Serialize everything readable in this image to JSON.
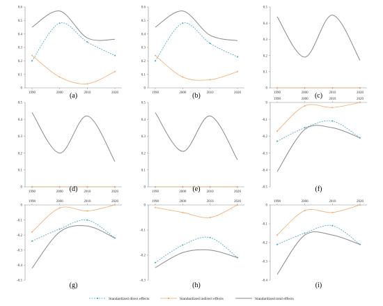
{
  "colors": {
    "direct": "#41a6b9",
    "indirect": "#f5a86a",
    "total": "#8a8a8a",
    "axis": "#8c8c8c"
  },
  "legend": {
    "direct": "Standardized direct effects",
    "indirect": "Standardized indirect effects",
    "total": "Standardized total effects"
  },
  "chart_data": [
    {
      "type": "line",
      "label": "(a)",
      "x": [
        1990,
        2000,
        2010,
        2020
      ],
      "ylim": [
        0,
        0.6
      ],
      "yticks": [
        "0",
        "0.1",
        "0.2",
        "0.3",
        "0.4",
        "0.5",
        "0.6"
      ],
      "xaxis_position": "bottom",
      "series": [
        {
          "key": "direct",
          "values": [
            0.2,
            0.48,
            0.34,
            0.24
          ]
        },
        {
          "key": "indirect",
          "values": [
            0.24,
            0.08,
            0.03,
            0.12
          ]
        },
        {
          "key": "total",
          "values": [
            0.45,
            0.57,
            0.37,
            0.36
          ]
        }
      ]
    },
    {
      "type": "line",
      "label": "(b)",
      "x": [
        1990,
        2000,
        2010,
        2020
      ],
      "ylim": [
        0,
        0.6
      ],
      "yticks": [
        "0",
        "0.1",
        "0.2",
        "0.3",
        "0.4",
        "0.5",
        "0.6"
      ],
      "xaxis_position": "bottom",
      "series": [
        {
          "key": "direct",
          "values": [
            0.2,
            0.48,
            0.33,
            0.23
          ]
        },
        {
          "key": "indirect",
          "values": [
            0.24,
            0.08,
            0.06,
            0.12
          ]
        },
        {
          "key": "total",
          "values": [
            0.45,
            0.57,
            0.39,
            0.35
          ]
        }
      ]
    },
    {
      "type": "line",
      "label": "(c)",
      "x": [
        1990,
        2000,
        2010,
        2020
      ],
      "ylim": [
        0,
        0.5
      ],
      "yticks": [
        "0",
        "0.1",
        "0.2",
        "0.3",
        "0.4",
        "0.5"
      ],
      "xaxis_position": "bottom",
      "series": [
        {
          "key": "direct",
          "values": [
            0,
            0,
            0,
            0
          ]
        },
        {
          "key": "indirect",
          "values": [
            0,
            0,
            0,
            0
          ]
        },
        {
          "key": "total",
          "values": [
            0.44,
            0.19,
            0.45,
            0.17
          ]
        }
      ]
    },
    {
      "type": "line",
      "label": "(d)",
      "x": [
        1990,
        2000,
        2010,
        2020
      ],
      "ylim": [
        0,
        0.5
      ],
      "yticks": [
        "0",
        "0.1",
        "0.2",
        "0.3",
        "0.4",
        "0.5"
      ],
      "xaxis_position": "bottom",
      "series": [
        {
          "key": "direct",
          "values": [
            0,
            0,
            0,
            0
          ]
        },
        {
          "key": "indirect",
          "values": [
            0,
            0,
            0,
            0
          ]
        },
        {
          "key": "total",
          "values": [
            0.44,
            0.2,
            0.42,
            0.15
          ]
        }
      ]
    },
    {
      "type": "line",
      "label": "(e)",
      "x": [
        1990,
        2000,
        2010,
        2020
      ],
      "ylim": [
        0,
        0.5
      ],
      "yticks": [
        "0",
        "0.1",
        "0.2",
        "0.3",
        "0.4",
        "0.5"
      ],
      "xaxis_position": "bottom",
      "series": [
        {
          "key": "direct",
          "values": [
            0,
            0,
            0,
            0
          ]
        },
        {
          "key": "indirect",
          "values": [
            0,
            0,
            0,
            0
          ]
        },
        {
          "key": "total",
          "values": [
            0.44,
            0.21,
            0.42,
            0.16
          ]
        }
      ]
    },
    {
      "type": "line",
      "label": "(f)",
      "x": [
        1990,
        2000,
        2010,
        2020
      ],
      "ylim": [
        -0.5,
        0
      ],
      "yticks": [
        "-0.5",
        "-0.4",
        "-0.3",
        "-0.2",
        "-0.1",
        "0"
      ],
      "xaxis_position": "top",
      "series": [
        {
          "key": "direct",
          "values": [
            -0.23,
            -0.15,
            -0.11,
            -0.21
          ]
        },
        {
          "key": "indirect",
          "values": [
            -0.17,
            -0.02,
            -0.03,
            0
          ]
        },
        {
          "key": "total",
          "values": [
            -0.41,
            -0.16,
            -0.15,
            -0.21
          ]
        }
      ]
    },
    {
      "type": "line",
      "label": "(g)",
      "x": [
        1990,
        2000,
        2010,
        2020
      ],
      "ylim": [
        -0.5,
        0
      ],
      "yticks": [
        "-0.5",
        "-0.4",
        "-0.3",
        "-0.2",
        "-0.1",
        "0"
      ],
      "xaxis_position": "top",
      "series": [
        {
          "key": "direct",
          "values": [
            -0.24,
            -0.16,
            -0.1,
            -0.22
          ]
        },
        {
          "key": "indirect",
          "values": [
            -0.18,
            -0.02,
            -0.04,
            0
          ]
        },
        {
          "key": "total",
          "values": [
            -0.42,
            -0.18,
            -0.14,
            -0.22
          ]
        }
      ]
    },
    {
      "type": "line",
      "label": "(h)",
      "x": [
        1990,
        2000,
        2010,
        2020
      ],
      "ylim": [
        -0.3,
        0
      ],
      "yticks": [
        "-0.3",
        "-0.2",
        "-0.1",
        "0"
      ],
      "xaxis_position": "top",
      "series": [
        {
          "key": "direct",
          "values": [
            -0.23,
            -0.16,
            -0.13,
            -0.21
          ]
        },
        {
          "key": "indirect",
          "values": [
            -0.01,
            -0.03,
            -0.05,
            0
          ]
        },
        {
          "key": "total",
          "values": [
            -0.25,
            -0.19,
            -0.18,
            -0.21
          ]
        }
      ]
    },
    {
      "type": "line",
      "label": "(i)",
      "x": [
        1990,
        2000,
        2010,
        2020
      ],
      "ylim": [
        -0.4,
        0
      ],
      "yticks": [
        "-0.4",
        "-0.3",
        "-0.2",
        "-0.1",
        "0"
      ],
      "xaxis_position": "top",
      "series": [
        {
          "key": "direct",
          "values": [
            -0.21,
            -0.15,
            -0.11,
            -0.21
          ]
        },
        {
          "key": "indirect",
          "values": [
            -0.16,
            -0.03,
            -0.04,
            0
          ]
        },
        {
          "key": "total",
          "values": [
            -0.37,
            -0.16,
            -0.16,
            -0.21
          ]
        }
      ]
    }
  ]
}
